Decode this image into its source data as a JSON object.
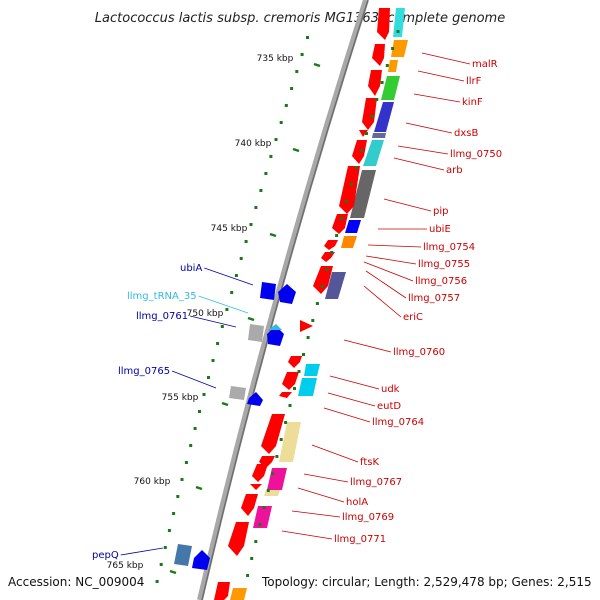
{
  "title": "Lactococcus lactis subsp. cremoris MG1363, complete genome",
  "accession": "Accession: NC_009004",
  "summary": "Topology: circular; Length: 2,529,478 bp; Genes: 2,515",
  "colors": {
    "forward_cds": "#ff0000",
    "reverse_cds": "#0000ff",
    "trna": "#33bbdd",
    "label_right": "#cc0000",
    "label_left": "#0000aa",
    "backbone": "#888888",
    "tick": "#1a7a1a"
  },
  "scale_ticks": [
    {
      "label": "735 kbp"
    },
    {
      "label": "740 kbp"
    },
    {
      "label": "745 kbp"
    },
    {
      "label": "750 kbp"
    },
    {
      "label": "755 kbp"
    },
    {
      "label": "760 kbp"
    },
    {
      "label": "765 kbp"
    }
  ],
  "right_labels": [
    {
      "text": "malR"
    },
    {
      "text": "llrF"
    },
    {
      "text": "kinF"
    },
    {
      "text": "dxsB"
    },
    {
      "text": "llmg_0750"
    },
    {
      "text": "arb"
    },
    {
      "text": "pip"
    },
    {
      "text": "ubiE"
    },
    {
      "text": "llmg_0754"
    },
    {
      "text": "llmg_0755"
    },
    {
      "text": "llmg_0756"
    },
    {
      "text": "llmg_0757"
    },
    {
      "text": "eriC"
    },
    {
      "text": "llmg_0760"
    },
    {
      "text": "udk"
    },
    {
      "text": "eutD"
    },
    {
      "text": "llmg_0764"
    },
    {
      "text": "ftsK"
    },
    {
      "text": "llmg_0767"
    },
    {
      "text": "holA"
    },
    {
      "text": "llmg_0769"
    },
    {
      "text": "llmg_0771"
    }
  ],
  "left_labels": [
    {
      "text": "ubiA",
      "kind": "cds"
    },
    {
      "text": "llmg_tRNA_35",
      "kind": "trna"
    },
    {
      "text": "llmg_0761",
      "kind": "cds"
    },
    {
      "text": "llmg_0765",
      "kind": "cds"
    },
    {
      "text": "pepQ",
      "kind": "cds"
    }
  ]
}
